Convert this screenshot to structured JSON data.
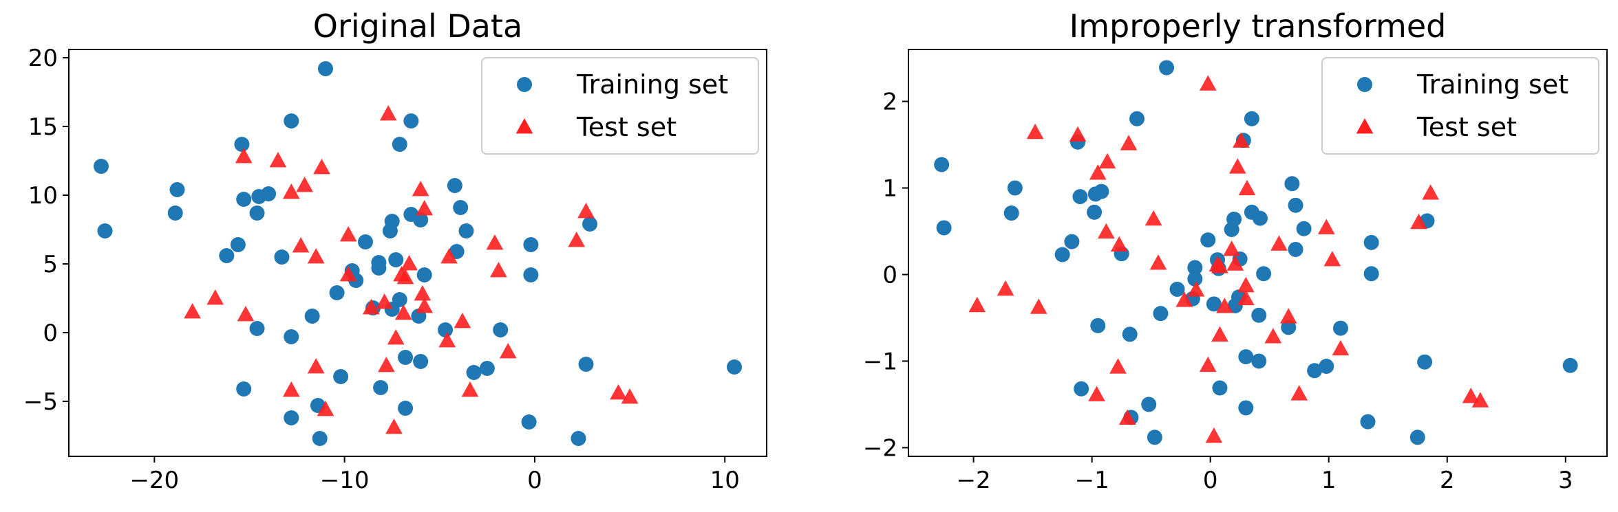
{
  "colors": {
    "training": "#1f77b4",
    "test": "#ff1f1f",
    "axis": "#000000",
    "legend_border": "#cccccc"
  },
  "chart_data": [
    {
      "type": "scatter",
      "title": "Original Data",
      "xlim": [
        -24.5,
        12.2
      ],
      "ylim": [
        -9.0,
        20.6
      ],
      "xticks": [
        -20,
        -10,
        0,
        10
      ],
      "xtick_labels": [
        "−20",
        "−10",
        "0",
        "10"
      ],
      "yticks": [
        -5,
        0,
        5,
        10,
        15,
        20
      ],
      "ytick_labels": [
        "−5",
        "0",
        "5",
        "10",
        "15",
        "20"
      ],
      "legend": "top-right",
      "series": [
        {
          "name": "Training set",
          "marker": "circle",
          "points": [
            [
              -22.8,
              12.1
            ],
            [
              -22.6,
              7.4
            ],
            [
              -18.8,
              10.4
            ],
            [
              -18.9,
              8.7
            ],
            [
              -15.4,
              13.7
            ],
            [
              -15.3,
              9.7
            ],
            [
              -14.6,
              8.7
            ],
            [
              -14.5,
              9.9
            ],
            [
              -14.0,
              10.1
            ],
            [
              -15.6,
              6.4
            ],
            [
              -16.2,
              5.6
            ],
            [
              -14.6,
              0.3
            ],
            [
              -15.3,
              -4.1
            ],
            [
              -12.8,
              15.4
            ],
            [
              -11.0,
              19.2
            ],
            [
              -13.3,
              5.5
            ],
            [
              -12.8,
              -0.3
            ],
            [
              -11.7,
              1.2
            ],
            [
              -12.8,
              -6.2
            ],
            [
              -11.4,
              -5.3
            ],
            [
              -11.3,
              -7.7
            ],
            [
              -10.2,
              -3.2
            ],
            [
              -8.9,
              6.6
            ],
            [
              -9.6,
              4.5
            ],
            [
              -10.4,
              2.9
            ],
            [
              -9.4,
              3.8
            ],
            [
              -8.2,
              5.1
            ],
            [
              -8.2,
              4.7
            ],
            [
              -8.5,
              1.8
            ],
            [
              -7.6,
              7.4
            ],
            [
              -7.5,
              8.1
            ],
            [
              -7.1,
              13.7
            ],
            [
              -6.5,
              15.4
            ],
            [
              -6.5,
              8.6
            ],
            [
              -6.0,
              8.2
            ],
            [
              -7.3,
              5.3
            ],
            [
              -5.8,
              4.2
            ],
            [
              -7.5,
              1.7
            ],
            [
              -7.1,
              2.4
            ],
            [
              -6.1,
              1.2
            ],
            [
              -6.8,
              -1.8
            ],
            [
              -6.0,
              -2.1
            ],
            [
              -6.8,
              -5.5
            ],
            [
              -8.1,
              -4.0
            ],
            [
              -4.2,
              10.7
            ],
            [
              -3.9,
              9.1
            ],
            [
              -3.6,
              7.4
            ],
            [
              -4.1,
              5.9
            ],
            [
              -4.7,
              0.2
            ],
            [
              -3.2,
              -2.9
            ],
            [
              -2.5,
              -2.6
            ],
            [
              -1.8,
              0.2
            ],
            [
              -0.2,
              6.4
            ],
            [
              -0.2,
              4.2
            ],
            [
              -0.3,
              -6.5
            ],
            [
              2.9,
              7.9
            ],
            [
              2.7,
              -2.3
            ],
            [
              2.3,
              -7.7
            ],
            [
              10.5,
              -2.5
            ]
          ]
        },
        {
          "name": "Test set",
          "marker": "triangle",
          "points": [
            [
              -18.0,
              1.5
            ],
            [
              -16.8,
              2.5
            ],
            [
              -15.3,
              12.8
            ],
            [
              -15.2,
              1.3
            ],
            [
              -13.5,
              12.5
            ],
            [
              -12.8,
              10.2
            ],
            [
              -12.1,
              10.7
            ],
            [
              -11.2,
              12.0
            ],
            [
              -12.3,
              6.3
            ],
            [
              -11.5,
              5.5
            ],
            [
              -12.8,
              -4.2
            ],
            [
              -11.5,
              -2.5
            ],
            [
              -11.0,
              -5.6
            ],
            [
              -9.8,
              7.1
            ],
            [
              -9.8,
              4.2
            ],
            [
              -8.6,
              1.8
            ],
            [
              -7.9,
              2.2
            ],
            [
              -7.7,
              15.9
            ],
            [
              -7.8,
              -2.4
            ],
            [
              -7.3,
              -0.4
            ],
            [
              -7.4,
              -6.9
            ],
            [
              -7.0,
              4.2
            ],
            [
              -6.8,
              4.0
            ],
            [
              -6.6,
              5.0
            ],
            [
              -6.9,
              1.4
            ],
            [
              -6.0,
              10.4
            ],
            [
              -5.8,
              9.0
            ],
            [
              -5.9,
              2.8
            ],
            [
              -5.8,
              1.9
            ],
            [
              -4.5,
              5.5
            ],
            [
              -4.6,
              -0.6
            ],
            [
              -3.8,
              0.8
            ],
            [
              -3.4,
              -4.2
            ],
            [
              -2.1,
              6.5
            ],
            [
              -1.9,
              4.5
            ],
            [
              -1.4,
              -1.4
            ],
            [
              2.2,
              6.7
            ],
            [
              2.7,
              8.8
            ],
            [
              4.4,
              -4.4
            ],
            [
              5.0,
              -4.7
            ]
          ]
        }
      ]
    },
    {
      "type": "scatter",
      "title": "Improperly transformed",
      "xlim": [
        -2.55,
        3.35
      ],
      "ylim": [
        -2.1,
        2.6
      ],
      "xticks": [
        -2,
        -1,
        0,
        1,
        2,
        3
      ],
      "xtick_labels": [
        "−2",
        "−1",
        "0",
        "1",
        "2",
        "3"
      ],
      "yticks": [
        -2,
        -1,
        0,
        1,
        2
      ],
      "ytick_labels": [
        "−2",
        "−1",
        "0",
        "1",
        "2"
      ],
      "legend": "top-right",
      "series": [
        {
          "name": "Training set",
          "marker": "circle",
          "points": [
            [
              -2.27,
              1.27
            ],
            [
              -2.25,
              0.54
            ],
            [
              -1.65,
              1.0
            ],
            [
              -1.68,
              0.71
            ],
            [
              -1.12,
              1.53
            ],
            [
              -1.1,
              0.9
            ],
            [
              -0.97,
              0.93
            ],
            [
              -0.92,
              0.96
            ],
            [
              -0.98,
              0.72
            ],
            [
              -1.17,
              0.38
            ],
            [
              -1.25,
              0.23
            ],
            [
              -0.75,
              0.24
            ],
            [
              -0.95,
              -0.59
            ],
            [
              -0.68,
              -0.69
            ],
            [
              -1.09,
              -1.32
            ],
            [
              -0.67,
              -1.65
            ],
            [
              -0.47,
              -1.88
            ],
            [
              -0.52,
              -1.5
            ],
            [
              -0.62,
              1.8
            ],
            [
              -0.37,
              2.39
            ],
            [
              -0.42,
              -0.45
            ],
            [
              -0.28,
              -0.17
            ],
            [
              -0.13,
              0.08
            ],
            [
              -0.13,
              -0.05
            ],
            [
              -0.15,
              -0.28
            ],
            [
              -0.02,
              0.4
            ],
            [
              0.03,
              -0.34
            ],
            [
              0.06,
              0.17
            ],
            [
              0.07,
              0.07
            ],
            [
              0.18,
              0.52
            ],
            [
              0.2,
              0.64
            ],
            [
              0.21,
              -0.36
            ],
            [
              0.28,
              1.55
            ],
            [
              0.25,
              0.18
            ],
            [
              0.24,
              -0.26
            ],
            [
              0.3,
              -0.95
            ],
            [
              0.3,
              -1.54
            ],
            [
              0.35,
              1.8
            ],
            [
              0.35,
              0.72
            ],
            [
              0.42,
              0.65
            ],
            [
              0.41,
              -0.47
            ],
            [
              0.41,
              -1.0
            ],
            [
              0.45,
              0.01
            ],
            [
              0.66,
              -0.61
            ],
            [
              0.69,
              1.05
            ],
            [
              0.72,
              0.8
            ],
            [
              0.72,
              0.29
            ],
            [
              0.79,
              0.53
            ],
            [
              0.88,
              -1.11
            ],
            [
              0.98,
              -1.06
            ],
            [
              1.1,
              -0.62
            ],
            [
              1.36,
              0.37
            ],
            [
              1.36,
              0.01
            ],
            [
              1.33,
              -1.7
            ],
            [
              1.75,
              -1.88
            ],
            [
              1.83,
              0.62
            ],
            [
              1.81,
              -1.01
            ],
            [
              3.04,
              -1.05
            ],
            [
              0.08,
              -1.31
            ]
          ]
        },
        {
          "name": "Test set",
          "marker": "triangle",
          "points": [
            [
              -1.97,
              -0.36
            ],
            [
              -1.73,
              -0.17
            ],
            [
              -1.45,
              -0.38
            ],
            [
              -1.48,
              1.64
            ],
            [
              -1.12,
              1.61
            ],
            [
              -0.95,
              1.17
            ],
            [
              -0.87,
              1.3
            ],
            [
              -0.88,
              0.49
            ],
            [
              -0.77,
              0.34
            ],
            [
              -0.78,
              -1.07
            ],
            [
              -0.96,
              -1.39
            ],
            [
              -0.69,
              1.51
            ],
            [
              -0.7,
              -1.66
            ],
            [
              -0.48,
              0.64
            ],
            [
              -0.44,
              0.13
            ],
            [
              -0.22,
              -0.3
            ],
            [
              -0.12,
              -0.18
            ],
            [
              -0.02,
              2.2
            ],
            [
              -0.02,
              -1.05
            ],
            [
              0.06,
              0.11
            ],
            [
              0.08,
              0.09
            ],
            [
              0.08,
              -0.7
            ],
            [
              0.12,
              -0.37
            ],
            [
              0.18,
              0.29
            ],
            [
              0.21,
              0.12
            ],
            [
              0.23,
              1.24
            ],
            [
              0.26,
              1.54
            ],
            [
              0.31,
              0.99
            ],
            [
              0.3,
              -0.13
            ],
            [
              0.3,
              -0.28
            ],
            [
              0.03,
              -1.87
            ],
            [
              0.53,
              -0.72
            ],
            [
              0.58,
              0.35
            ],
            [
              0.66,
              -0.49
            ],
            [
              0.75,
              -1.38
            ],
            [
              0.98,
              0.54
            ],
            [
              1.03,
              0.17
            ],
            [
              1.1,
              -0.86
            ],
            [
              1.76,
              0.6
            ],
            [
              1.86,
              0.94
            ],
            [
              2.2,
              -1.41
            ],
            [
              2.28,
              -1.46
            ]
          ]
        }
      ]
    }
  ]
}
